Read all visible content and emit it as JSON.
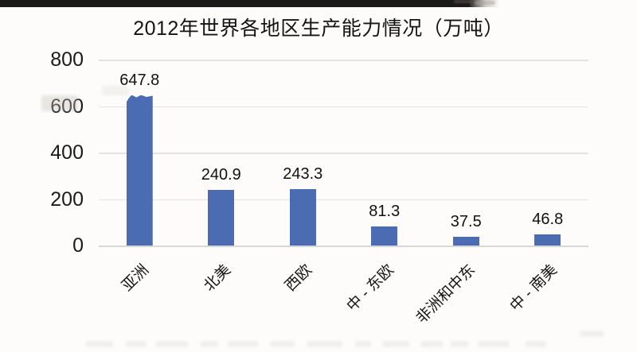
{
  "chart_data": {
    "type": "bar",
    "title": "2012年世界各地区生产能力情况（万吨）",
    "categories": [
      "亚洲",
      "北美",
      "西欧",
      "中 - 东欧",
      "非洲和中东",
      "中 - 南美"
    ],
    "values": [
      647.8,
      240.9,
      243.3,
      81.3,
      37.5,
      46.8
    ],
    "data_labels": [
      "647.8",
      "240.9",
      "243.3",
      "81.3",
      "37.5",
      "46.8"
    ],
    "yticks": [
      800,
      600,
      400,
      200,
      0
    ],
    "ytick_labels": [
      "800",
      "600",
      "400",
      "200",
      "0"
    ],
    "ylim": [
      0,
      800
    ],
    "xlabel": "",
    "ylabel": "",
    "grid": true,
    "legend": false,
    "bar_color": "#4b6cb3",
    "gridline_color": "#e4e3e1",
    "axis_line_color": "#d7d6d4",
    "text_color": "#1b1b1b",
    "background_color": "#fdfcfa"
  }
}
